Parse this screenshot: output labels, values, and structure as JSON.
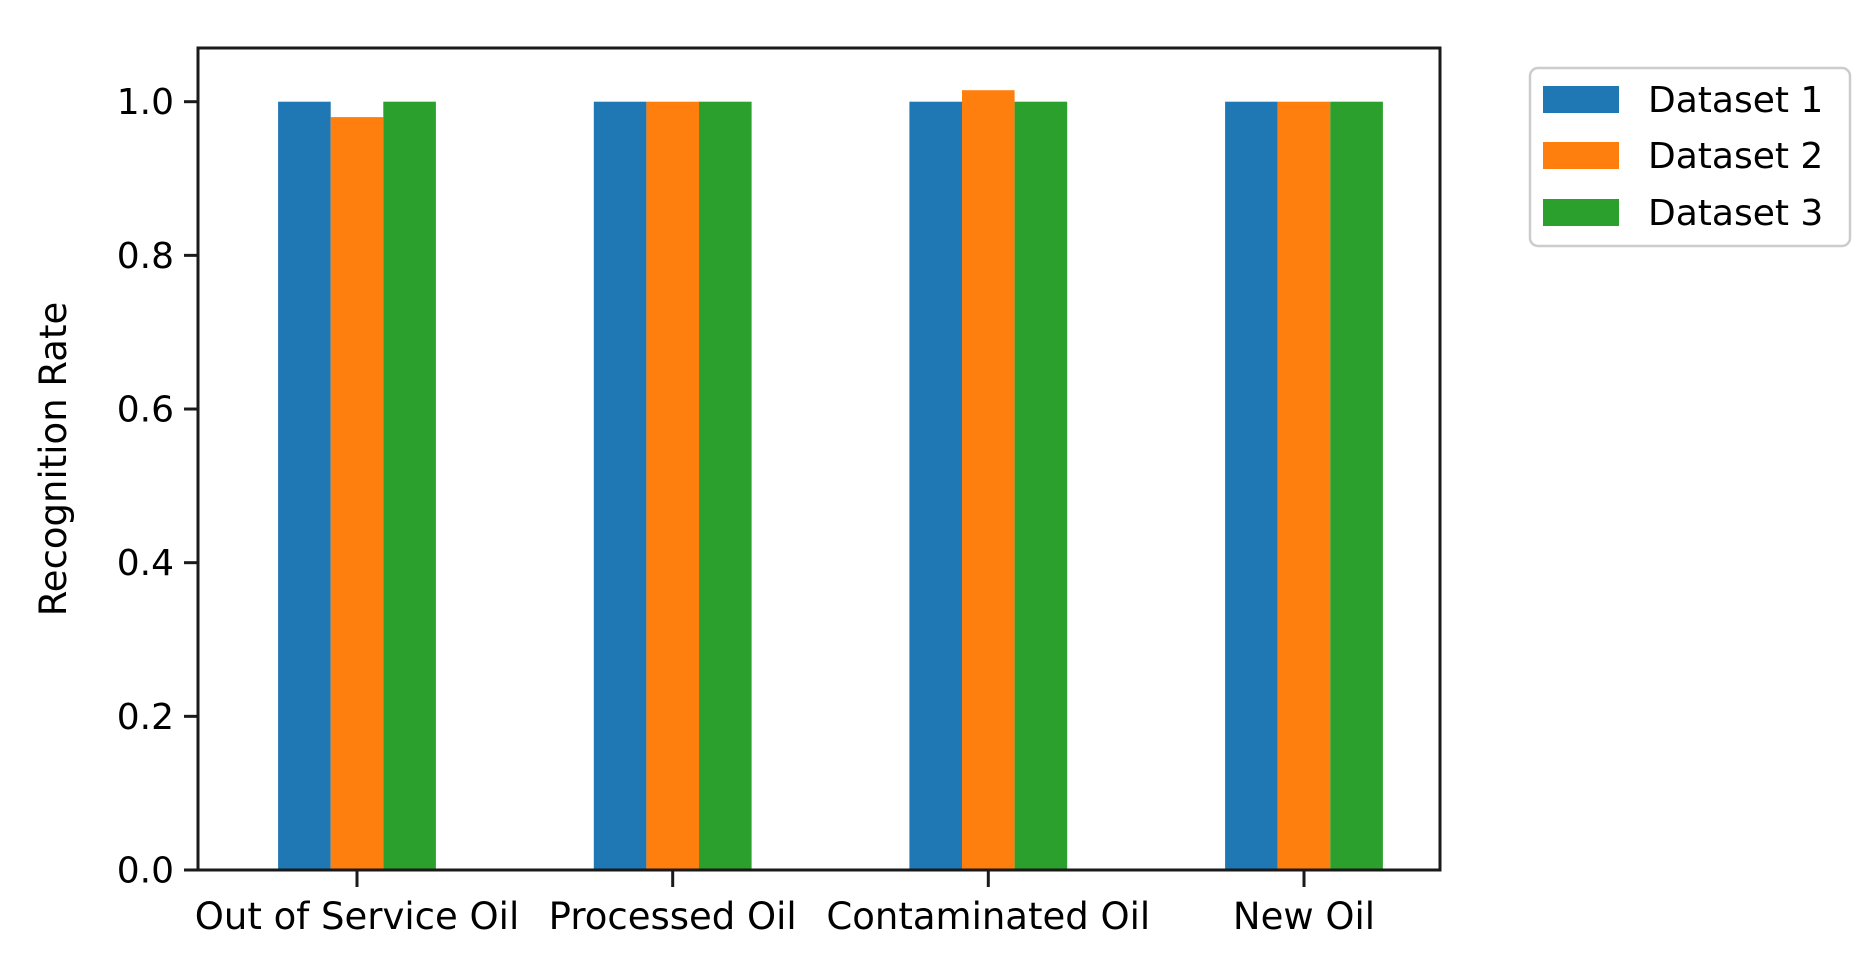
{
  "chart_data": {
    "type": "bar",
    "title": "",
    "xlabel": "",
    "ylabel": "Recognition Rate",
    "categories": [
      "Out of Service Oil",
      "Processed Oil",
      "Contaminated Oil",
      "New Oil"
    ],
    "series": [
      {
        "name": "Dataset 1",
        "color": "#1f77b4",
        "values": [
          1.0,
          1.0,
          1.0,
          1.0
        ]
      },
      {
        "name": "Dataset 2",
        "color": "#ff7f0e",
        "values": [
          0.98,
          1.0,
          1.015,
          1.0
        ]
      },
      {
        "name": "Dataset 3",
        "color": "#2ca02c",
        "values": [
          1.0,
          1.0,
          1.0,
          1.0
        ]
      }
    ],
    "ylim": [
      0.0,
      1.07
    ],
    "yticks": [
      0.0,
      0.2,
      0.4,
      0.6,
      0.8,
      1.0
    ],
    "ytick_labels": [
      "0.0",
      "0.2",
      "0.4",
      "0.6",
      "0.8",
      "1.0"
    ],
    "grid": false,
    "legend": {
      "position": "upper-right-outside",
      "entries": [
        "Dataset 1",
        "Dataset 2",
        "Dataset 3"
      ]
    },
    "axis_color": "#1a1a1a",
    "legend_border_color": "#cccccc",
    "background_color": "#ffffff"
  }
}
